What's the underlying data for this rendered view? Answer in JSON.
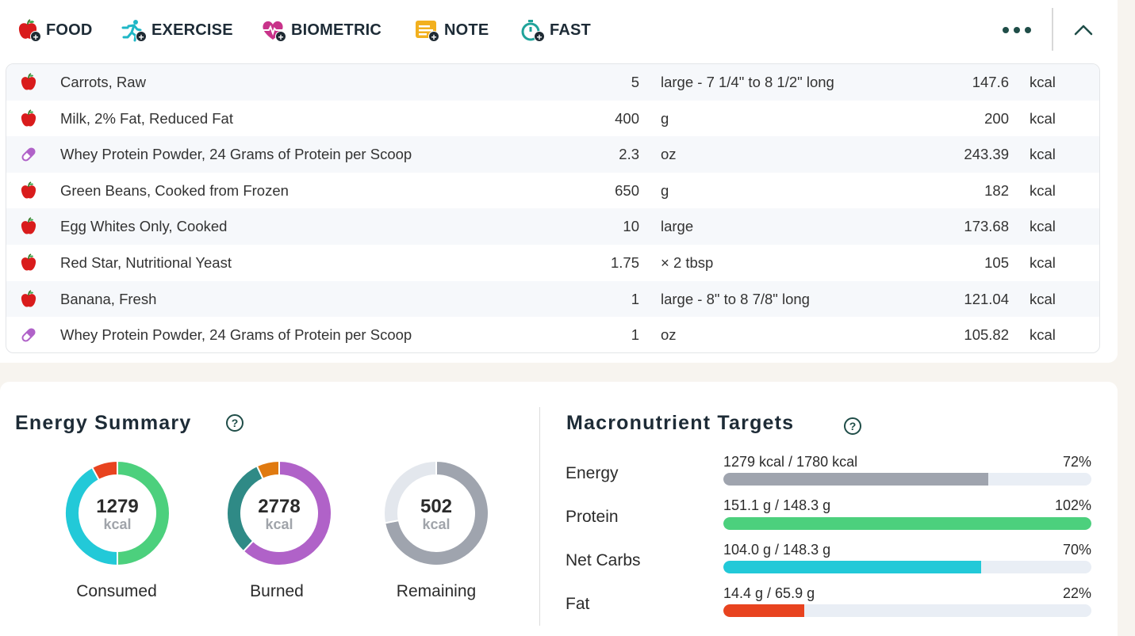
{
  "toolbar": {
    "items": [
      {
        "label": "FOOD",
        "icon": "apple-add-icon"
      },
      {
        "label": "EXERCISE",
        "icon": "runner-add-icon"
      },
      {
        "label": "BIOMETRIC",
        "icon": "heart-add-icon"
      },
      {
        "label": "NOTE",
        "icon": "note-add-icon"
      },
      {
        "label": "FAST",
        "icon": "stopwatch-add-icon"
      }
    ],
    "more_icon": "more-dots-icon",
    "collapse_icon": "chevron-up-icon"
  },
  "diary": {
    "rows": [
      {
        "type": "food",
        "name": "Carrots, Raw",
        "qty": "5",
        "unit": "large - 7 1/4\" to 8 1/2\" long",
        "calories": "147.6",
        "cal_unit": "kcal"
      },
      {
        "type": "food",
        "name": "Milk, 2% Fat, Reduced Fat",
        "qty": "400",
        "unit": "g",
        "calories": "200",
        "cal_unit": "kcal"
      },
      {
        "type": "supplement",
        "name": "Whey Protein Powder, 24 Grams of Protein per Scoop",
        "qty": "2.3",
        "unit": "oz",
        "calories": "243.39",
        "cal_unit": "kcal"
      },
      {
        "type": "food",
        "name": "Green Beans, Cooked from Frozen",
        "qty": "650",
        "unit": "g",
        "calories": "182",
        "cal_unit": "kcal"
      },
      {
        "type": "food",
        "name": "Egg Whites Only, Cooked",
        "qty": "10",
        "unit": "large",
        "calories": "173.68",
        "cal_unit": "kcal"
      },
      {
        "type": "food",
        "name": "Red Star, Nutritional Yeast",
        "qty": "1.75",
        "unit": "× 2 tbsp",
        "calories": "105",
        "cal_unit": "kcal"
      },
      {
        "type": "food",
        "name": "Banana, Fresh",
        "qty": "1",
        "unit": "large - 8\" to 8 7/8\" long",
        "calories": "121.04",
        "cal_unit": "kcal"
      },
      {
        "type": "supplement",
        "name": "Whey Protein Powder, 24 Grams of Protein per Scoop",
        "qty": "1",
        "unit": "oz",
        "calories": "105.82",
        "cal_unit": "kcal"
      }
    ]
  },
  "energy_summary": {
    "title": "Energy Summary",
    "help": "?",
    "donuts": [
      {
        "value": "1279",
        "unit": "kcal",
        "label": "Consumed",
        "segments": [
          {
            "fraction": 0.5,
            "color": "#4cd07d"
          },
          {
            "fraction": 0.42,
            "color": "#22c9d8"
          },
          {
            "fraction": 0.08,
            "color": "#e8431f"
          }
        ]
      },
      {
        "value": "2778",
        "unit": "kcal",
        "label": "Burned",
        "segments": [
          {
            "fraction": 0.62,
            "color": "#b062c8"
          },
          {
            "fraction": 0.31,
            "color": "#2f8a86"
          },
          {
            "fraction": 0.07,
            "color": "#e07a10"
          }
        ]
      },
      {
        "value": "502",
        "unit": "kcal",
        "label": "Remaining",
        "segments": [
          {
            "fraction": 0.72,
            "color": "#9fa4ae"
          },
          {
            "fraction": 0.28,
            "color": "#e3e7ed"
          }
        ]
      }
    ]
  },
  "macro_targets": {
    "title": "Macronutrient Targets",
    "help": "?",
    "rows": [
      {
        "label": "Energy",
        "text": "1279 kcal / 1780 kcal",
        "pct": "72%",
        "fill": 0.72,
        "color": "#9fa4ae"
      },
      {
        "label": "Protein",
        "text": "151.1 g / 148.3 g",
        "pct": "102%",
        "fill": 1.0,
        "color": "#4cd07d"
      },
      {
        "label": "Net Carbs",
        "text": "104.0 g / 148.3 g",
        "pct": "70%",
        "fill": 0.7,
        "color": "#22c9d8"
      },
      {
        "label": "Fat",
        "text": "14.4 g / 65.9 g",
        "pct": "22%",
        "fill": 0.22,
        "color": "#e8431f"
      }
    ]
  }
}
